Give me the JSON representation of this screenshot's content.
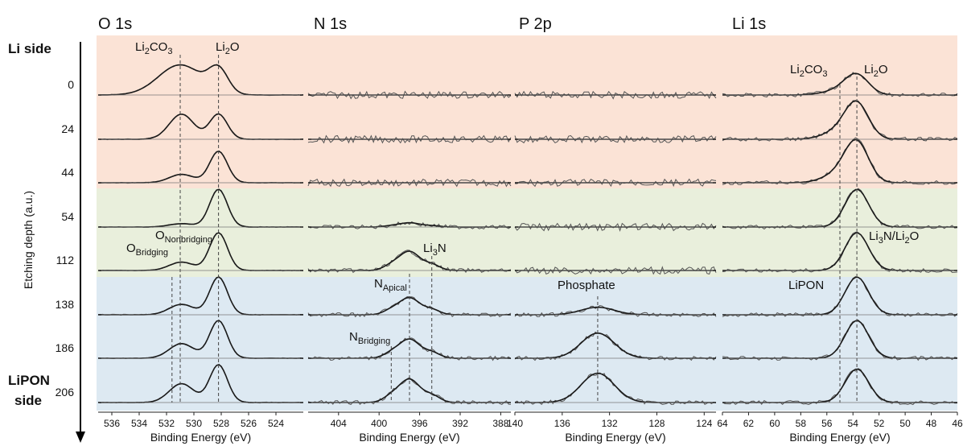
{
  "chart_data": {
    "type": "line",
    "ylabel": "Etching depth (a.u.)",
    "side_labels": {
      "top": "Li side",
      "bottom_line1": "LiPON",
      "bottom_line2": "side"
    },
    "depths": [
      "0",
      "24",
      "44",
      "54",
      "112",
      "138",
      "186",
      "206"
    ],
    "region_colors": [
      "#fbe3d6",
      "#e9efdc",
      "#dde9f2"
    ],
    "region_bounds": [
      0,
      3,
      5,
      8
    ],
    "panels": [
      {
        "title": "O 1s",
        "xlabel": "Binding Energy (eV)",
        "xlim": [
          537,
          522
        ],
        "xticks": [
          536,
          534,
          532,
          530,
          528,
          526,
          524
        ],
        "peaks_eV": {
          "Li2CO3": 531.0,
          "Li2O": 528.2,
          "O_bridging": 531.6,
          "O_nonbridging": 530.9
        },
        "relative_intensity": {
          "Li2O": [
            0.55,
            0.6,
            0.75,
            0.9,
            0.9,
            0.9,
            0.9,
            0.9
          ],
          "carbonate_or_O_bridging": [
            0.72,
            0.6,
            0.2,
            0.08,
            0.2,
            0.25,
            0.35,
            0.45
          ]
        }
      },
      {
        "title": "N 1s",
        "xlabel": "Binding Energy (eV)",
        "xlim": [
          407,
          387
        ],
        "xticks": [
          404,
          400,
          396,
          392,
          388
        ],
        "peaks_eV": {
          "N_apical": 397.0,
          "N_bridging": 398.8,
          "Li3N": 394.8
        },
        "relative_intensity": [
          0,
          0,
          0,
          0.1,
          0.45,
          0.4,
          0.45,
          0.55
        ]
      },
      {
        "title": "P 2p",
        "xlabel": "Binding Energy (eV)",
        "xlim": [
          140,
          123
        ],
        "xticks": [
          140,
          136,
          132,
          128,
          124
        ],
        "peaks_eV": {
          "Phosphate": 133.0
        },
        "relative_intensity": [
          0,
          0,
          0,
          0,
          0,
          0.18,
          0.6,
          0.7
        ]
      },
      {
        "title": "Li 1s",
        "xlabel": "Binding Energy (eV)",
        "xlim": [
          64,
          46
        ],
        "xticks": [
          64,
          62,
          60,
          58,
          56,
          54,
          52,
          50,
          48,
          46
        ],
        "peaks_eV": {
          "Li2CO3": 55.0,
          "Li2O": 53.7,
          "Li3N_Li2O": 53.6,
          "LiPON": 54.7
        },
        "relative_intensity": [
          0.45,
          0.8,
          0.9,
          0.9,
          0.9,
          0.9,
          0.9,
          0.8
        ]
      }
    ],
    "annotations": {
      "li2co3": "Li2CO3",
      "li2o": "Li2O",
      "o_bridging": "OBridging",
      "o_nonbridging": "ONonbridging",
      "li3n": "Li3N",
      "n_apical": "NApical",
      "n_bridging": "NBridging",
      "phosphate": "Phosphate",
      "li_li2co3": "Li2CO3",
      "li_li2o": "Li2O",
      "li3n_li2o": "Li3N/Li2O",
      "lipon": "LiPON"
    }
  }
}
